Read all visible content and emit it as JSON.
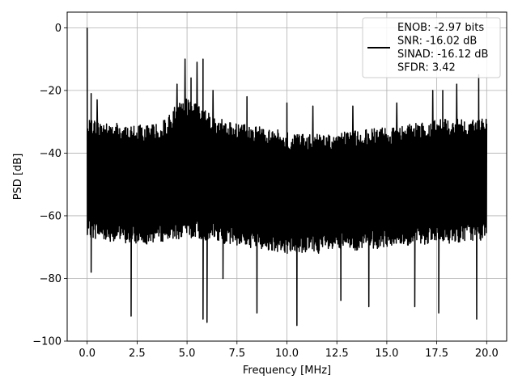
{
  "chart_data": {
    "type": "line",
    "xlabel": "Frequency [MHz]",
    "ylabel": "PSD [dB]",
    "xlim": [
      -1,
      21
    ],
    "ylim": [
      -100,
      5
    ],
    "x_ticks": [
      0,
      2.5,
      5,
      7.5,
      10,
      12.5,
      15,
      17.5,
      20
    ],
    "x_tick_labels": [
      "0.0",
      "2.5",
      "5.0",
      "7.5",
      "10.0",
      "12.5",
      "15.0",
      "17.5",
      "20.0"
    ],
    "y_ticks": [
      0,
      -20,
      -40,
      -60,
      -80,
      -100
    ],
    "y_tick_labels": [
      "0",
      "−20",
      "−40",
      "−60",
      "−80",
      "−100"
    ],
    "grid": true,
    "legend_position": "top-right",
    "series_color": "#000000",
    "series": [
      {
        "legend_lines": [
          "ENOB: -2.97 bits",
          "SNR: -16.02 dB",
          "SINAD: -16.12 dB",
          "SFDR: 3.42"
        ],
        "x_range": [
          0,
          20
        ],
        "spike": {
          "x": 0.0,
          "y": 0
        },
        "upper_envelope": [
          [
            0.0,
            -29
          ],
          [
            1,
            -30
          ],
          [
            2,
            -31
          ],
          [
            3,
            -31
          ],
          [
            4,
            -29
          ],
          [
            4.5,
            -24
          ],
          [
            5,
            -22
          ],
          [
            5.5,
            -24
          ],
          [
            6,
            -27
          ],
          [
            7,
            -30
          ],
          [
            8,
            -31
          ],
          [
            9,
            -32
          ],
          [
            10,
            -33
          ],
          [
            11,
            -34
          ],
          [
            12,
            -34
          ],
          [
            13,
            -33
          ],
          [
            14,
            -32
          ],
          [
            15,
            -32
          ],
          [
            16,
            -31
          ],
          [
            17,
            -30
          ],
          [
            18,
            -29
          ],
          [
            19,
            -29
          ],
          [
            20,
            -29
          ]
        ],
        "lower_envelope": [
          [
            0.0,
            -67
          ],
          [
            1,
            -68
          ],
          [
            2,
            -69
          ],
          [
            3,
            -69
          ],
          [
            4,
            -68
          ],
          [
            5,
            -67
          ],
          [
            6,
            -68
          ],
          [
            7,
            -69
          ],
          [
            8,
            -70
          ],
          [
            9,
            -71
          ],
          [
            10,
            -72
          ],
          [
            11,
            -72
          ],
          [
            12,
            -72
          ],
          [
            13,
            -71
          ],
          [
            14,
            -71
          ],
          [
            15,
            -70
          ],
          [
            16,
            -70
          ],
          [
            17,
            -69
          ],
          [
            18,
            -69
          ],
          [
            19,
            -68
          ],
          [
            20,
            -68
          ]
        ],
        "peaks": [
          [
            0.2,
            -21
          ],
          [
            0.5,
            -23
          ],
          [
            4.5,
            -18
          ],
          [
            4.9,
            -10
          ],
          [
            5.2,
            -16
          ],
          [
            5.5,
            -11
          ],
          [
            5.8,
            -10
          ],
          [
            6.3,
            -20
          ],
          [
            8.0,
            -22
          ],
          [
            10.0,
            -24
          ],
          [
            11.3,
            -25
          ],
          [
            13.3,
            -25
          ],
          [
            15.5,
            -24
          ],
          [
            17.3,
            -20
          ],
          [
            17.8,
            -20
          ],
          [
            18.5,
            -18
          ],
          [
            19.6,
            -15
          ]
        ],
        "dips": [
          [
            0.2,
            -78
          ],
          [
            2.2,
            -92
          ],
          [
            5.8,
            -93
          ],
          [
            6.0,
            -94
          ],
          [
            6.8,
            -80
          ],
          [
            8.5,
            -91
          ],
          [
            10.5,
            -95
          ],
          [
            12.7,
            -87
          ],
          [
            14.1,
            -89
          ],
          [
            16.4,
            -89
          ],
          [
            17.6,
            -91
          ],
          [
            19.5,
            -93
          ]
        ]
      }
    ]
  }
}
